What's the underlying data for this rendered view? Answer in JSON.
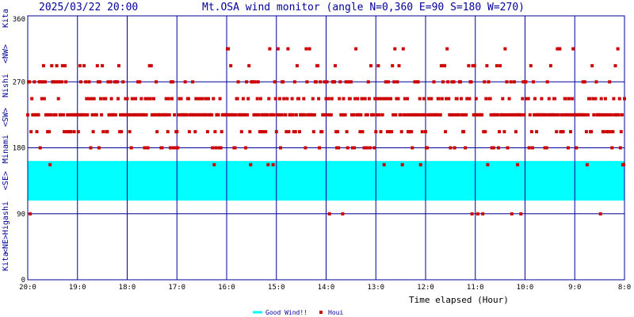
{
  "chart_data": {
    "type": "scatter",
    "date_label": "2025/03/22 20:00",
    "title": "Mt.OSA wind monitor (angle N=0,360 E=90 S=180 W=270)",
    "xlabel": "Time elapsed (Hour)",
    "x_ticks": [
      "20:0",
      "19:0",
      "18:0",
      "17:0",
      "16:0",
      "15:0",
      "14:0",
      "13:0",
      "12:0",
      "11:0",
      "10:0",
      "9:0",
      "8:0"
    ],
    "xlim": [
      0,
      12
    ],
    "ylim": [
      0,
      360
    ],
    "y_ticks": [
      0,
      90,
      180,
      270,
      360
    ],
    "grid": true,
    "direction_labels": [
      "Kita",
      "<NE>",
      "Higashi",
      "<SE>",
      "Minami",
      "<SW>",
      "Nishi",
      "<NW>",
      "Kita"
    ],
    "good_wind_band": {
      "from": 108,
      "to": 162
    },
    "legend": {
      "position": "bottom-center",
      "good_wind": "Good Wind!!",
      "houi": "Houi"
    },
    "colors": {
      "band": "#00ffff",
      "points": "#cc0000",
      "axis": "#000099",
      "grid": "#000099"
    },
    "series": [
      {
        "name": "Houi",
        "seed": 20250322,
        "interval_min": 1,
        "count": 721,
        "levels": [
          225,
          247,
          202,
          270,
          180,
          292,
          157,
          315,
          90
        ]
      }
    ]
  }
}
